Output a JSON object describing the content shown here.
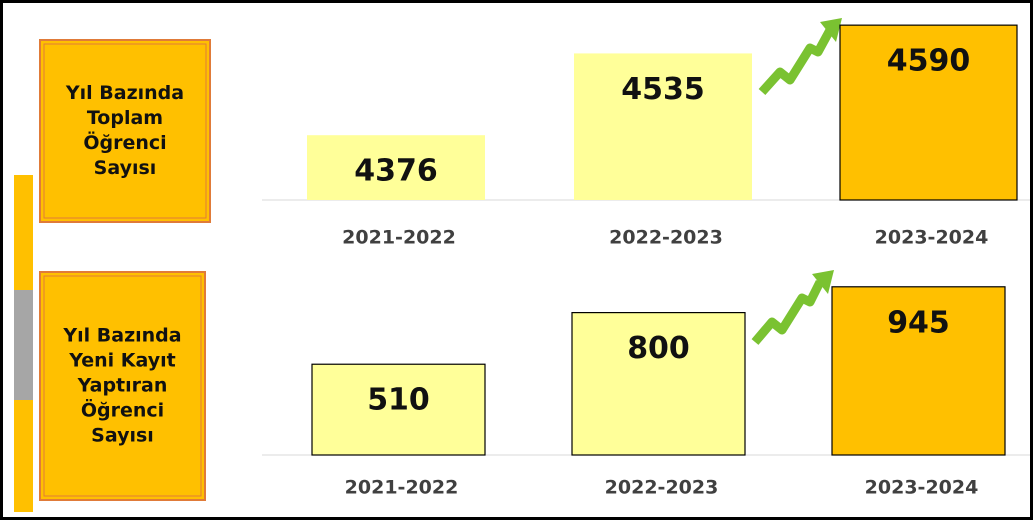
{
  "chart_data": [
    {
      "type": "bar",
      "title_lines": [
        "Yıl Bazında",
        "Toplam",
        "Öğrenci",
        "Sayısı"
      ],
      "categories": [
        "2021-2022",
        "2022-2023",
        "2023-2024"
      ],
      "values": [
        4376,
        4535,
        4590
      ],
      "colors": [
        "#ffff99",
        "#ffff99",
        "#ffc000"
      ],
      "bar_borders": [
        false,
        false,
        true
      ],
      "ylim": [
        4250,
        4600
      ]
    },
    {
      "type": "bar",
      "title_lines": [
        "Yıl Bazında",
        "Yeni Kayıt",
        "Yaptıran",
        "Öğrenci",
        "Sayısı"
      ],
      "categories": [
        "2021-2022",
        "2022-2023",
        "2023-2024"
      ],
      "values": [
        510,
        800,
        945
      ],
      "colors": [
        "#ffff99",
        "#ffff99",
        "#ffc000"
      ],
      "bar_borders": [
        true,
        true,
        true
      ],
      "ylim": [
        0,
        1000
      ]
    }
  ]
}
